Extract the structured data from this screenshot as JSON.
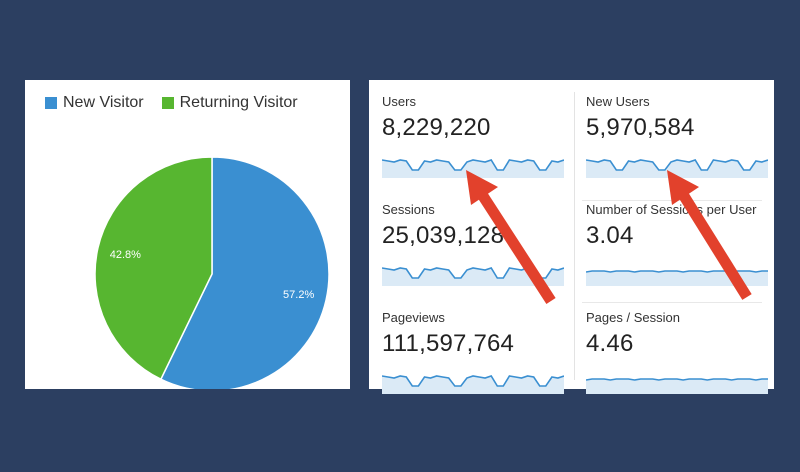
{
  "pie": {
    "legend": [
      {
        "label": "New Visitor",
        "color": "#3a8fd1"
      },
      {
        "label": "Returning Visitor",
        "color": "#57b630"
      }
    ]
  },
  "chart_data": {
    "type": "pie",
    "slices": [
      {
        "name": "New Visitor",
        "value": 57.2,
        "label": "57.2%",
        "color": "#3a8fd1"
      },
      {
        "name": "Returning Visitor",
        "value": 42.8,
        "label": "42.8%",
        "color": "#57b630"
      }
    ]
  },
  "metrics": [
    {
      "label": "Users",
      "value": "8,229,220",
      "trend": "weekly"
    },
    {
      "label": "New Users",
      "value": "5,970,584",
      "trend": "weekly"
    },
    {
      "label": "Sessions",
      "value": "25,039,128",
      "trend": "weekly"
    },
    {
      "label": "Number of Sessions per User",
      "value": "3.04",
      "trend": "flat"
    },
    {
      "label": "Pageviews",
      "value": "111,597,764",
      "trend": "weekly"
    },
    {
      "label": "Pages / Session",
      "value": "4.46",
      "trend": "flat"
    }
  ],
  "colors": {
    "background": "#2c3f61",
    "sparkline": "#3a8fd1",
    "sparkline_fill": "#dbeaf6",
    "arrow": "#e2412c"
  }
}
